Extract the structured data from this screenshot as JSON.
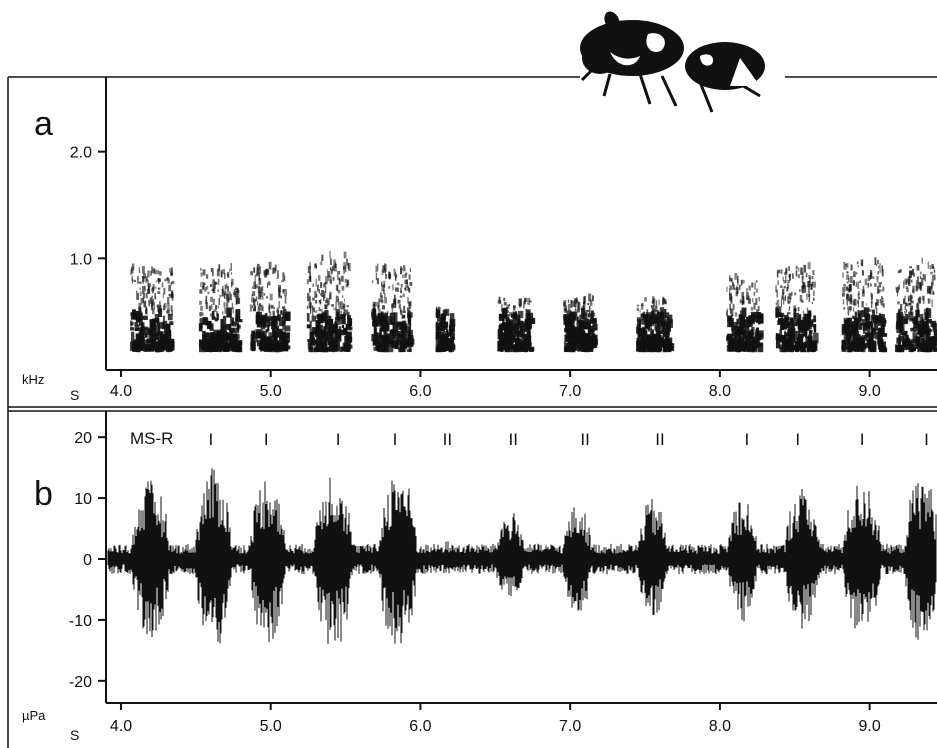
{
  "panels": {
    "a": {
      "letter": "a",
      "y_unit": "kHz",
      "x_unit": "S",
      "y_ticks": [
        {
          "value": 2.0,
          "label": "2.0"
        },
        {
          "value": 1.0,
          "label": "1.0"
        }
      ],
      "x_ticks": [
        {
          "value": 4.0,
          "label": "4.0"
        },
        {
          "value": 5.0,
          "label": "5.0"
        },
        {
          "value": 6.0,
          "label": "6.0"
        },
        {
          "value": 7.0,
          "label": "7.0"
        },
        {
          "value": 8.0,
          "label": "8.0"
        },
        {
          "value": 9.0,
          "label": "9.0"
        }
      ]
    },
    "b": {
      "letter": "b",
      "y_unit": "µPa",
      "x_unit": "S",
      "annotation_label": "MS-R",
      "y_ticks": [
        {
          "value": 20,
          "label": "20"
        },
        {
          "value": 10,
          "label": "10"
        },
        {
          "value": 0,
          "label": "0"
        },
        {
          "value": -10,
          "label": "-10"
        },
        {
          "value": -20,
          "label": "-20"
        }
      ],
      "x_ticks": [
        {
          "value": 4.0,
          "label": "4.0"
        },
        {
          "value": 5.0,
          "label": "5.0"
        },
        {
          "value": 6.0,
          "label": "6.0"
        },
        {
          "value": 7.0,
          "label": "7.0"
        },
        {
          "value": 8.0,
          "label": "8.0"
        },
        {
          "value": 9.0,
          "label": "9.0"
        }
      ]
    }
  },
  "chart_data": [
    {
      "type": "heatmap",
      "panel": "a",
      "description_free": true,
      "xlim": [
        3.9,
        9.45
      ],
      "ylim": [
        0.0,
        2.7
      ],
      "bursts": [
        {
          "x": 4.2,
          "width": 0.28,
          "fmax": 0.9
        },
        {
          "x": 4.65,
          "width": 0.26,
          "fmax": 0.9
        },
        {
          "x": 4.98,
          "width": 0.24,
          "fmax": 0.9
        },
        {
          "x": 5.38,
          "width": 0.28,
          "fmax": 1.0
        },
        {
          "x": 5.8,
          "width": 0.26,
          "fmax": 0.9
        },
        {
          "x": 6.15,
          "width": 0.1,
          "fmax": 0.5
        },
        {
          "x": 6.62,
          "width": 0.22,
          "fmax": 0.6
        },
        {
          "x": 7.05,
          "width": 0.2,
          "fmax": 0.6
        },
        {
          "x": 7.55,
          "width": 0.22,
          "fmax": 0.6
        },
        {
          "x": 8.15,
          "width": 0.22,
          "fmax": 0.8
        },
        {
          "x": 8.5,
          "width": 0.26,
          "fmax": 0.9
        },
        {
          "x": 8.95,
          "width": 0.28,
          "fmax": 0.95
        },
        {
          "x": 9.3,
          "width": 0.26,
          "fmax": 0.95
        }
      ]
    },
    {
      "type": "line",
      "panel": "b",
      "xlim": [
        3.9,
        9.45
      ],
      "ylim": [
        -22,
        22
      ],
      "pulse_labels": [
        {
          "x": 4.6,
          "label": "I"
        },
        {
          "x": 4.97,
          "label": "I"
        },
        {
          "x": 5.45,
          "label": "I"
        },
        {
          "x": 5.83,
          "label": "I"
        },
        {
          "x": 6.18,
          "label": "II"
        },
        {
          "x": 6.62,
          "label": "II"
        },
        {
          "x": 7.1,
          "label": "II"
        },
        {
          "x": 7.6,
          "label": "II"
        },
        {
          "x": 8.18,
          "label": "I"
        },
        {
          "x": 8.52,
          "label": "I"
        },
        {
          "x": 8.95,
          "label": "I"
        },
        {
          "x": 9.38,
          "label": "I"
        }
      ],
      "bursts": [
        {
          "x": 4.2,
          "width": 0.26,
          "amp": 13
        },
        {
          "x": 4.62,
          "width": 0.25,
          "amp": 15
        },
        {
          "x": 4.98,
          "width": 0.24,
          "amp": 14
        },
        {
          "x": 5.42,
          "width": 0.26,
          "amp": 15
        },
        {
          "x": 5.85,
          "width": 0.26,
          "amp": 15
        },
        {
          "x": 6.18,
          "width": 0.1,
          "amp": 3
        },
        {
          "x": 6.6,
          "width": 0.2,
          "amp": 8
        },
        {
          "x": 7.05,
          "width": 0.2,
          "amp": 9
        },
        {
          "x": 7.55,
          "width": 0.2,
          "amp": 10
        },
        {
          "x": 8.15,
          "width": 0.2,
          "amp": 11
        },
        {
          "x": 8.55,
          "width": 0.24,
          "amp": 12
        },
        {
          "x": 8.95,
          "width": 0.26,
          "amp": 13
        },
        {
          "x": 9.35,
          "width": 0.24,
          "amp": 14
        }
      ],
      "baseline_amp": 2.5
    }
  ],
  "colors": {
    "ink": "#111111",
    "background": "#ffffff"
  },
  "icons": {
    "beetle": "beetle-pair-illustration"
  }
}
